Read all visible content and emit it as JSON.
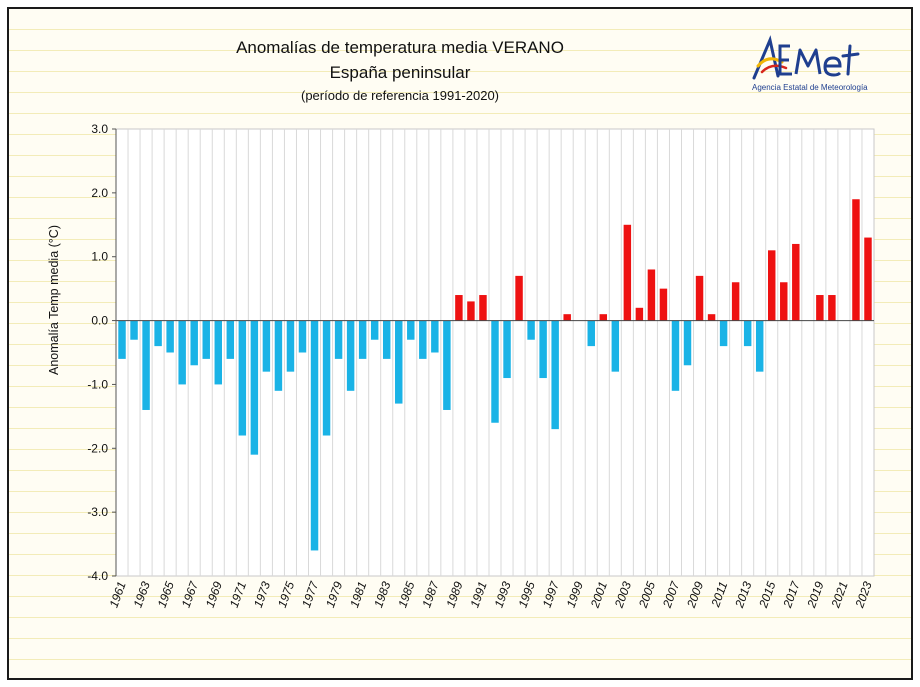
{
  "chart_data": {
    "type": "bar",
    "title": "Anomalías de temperatura media VERANO",
    "subtitle": "España peninsular",
    "note": "(período de referencia 1991-2020)",
    "ylabel": "Anomalía Temp media (°C)",
    "xlabel": "",
    "ylim": [
      -4.0,
      3.0
    ],
    "yticks": [
      "3.0",
      "2.0",
      "1.0",
      "0.0",
      "-1.0",
      "-2.0",
      "-3.0",
      "-4.0"
    ],
    "ytick_values": [
      3,
      2,
      1,
      0,
      -1,
      -2,
      -3,
      -4
    ],
    "grid": "vertical",
    "colors": {
      "positive": "#ee1111",
      "negative": "#1ab3e6"
    },
    "categories": [
      1961,
      1962,
      1963,
      1964,
      1965,
      1966,
      1967,
      1968,
      1969,
      1970,
      1971,
      1972,
      1973,
      1974,
      1975,
      1976,
      1977,
      1978,
      1979,
      1980,
      1981,
      1982,
      1983,
      1984,
      1985,
      1986,
      1987,
      1988,
      1989,
      1990,
      1991,
      1992,
      1993,
      1994,
      1995,
      1996,
      1997,
      1998,
      1999,
      2000,
      2001,
      2002,
      2003,
      2004,
      2005,
      2006,
      2007,
      2008,
      2009,
      2010,
      2011,
      2012,
      2013,
      2014,
      2015,
      2016,
      2017,
      2018,
      2019,
      2020,
      2021,
      2022,
      2023
    ],
    "xtick_labels": [
      "1961",
      "1963",
      "1965",
      "1967",
      "1969",
      "1971",
      "1973",
      "1975",
      "1977",
      "1979",
      "1981",
      "1983",
      "1985",
      "1987",
      "1989",
      "1991",
      "1993",
      "1995",
      "1997",
      "1999",
      "2001",
      "2003",
      "2005",
      "2007",
      "2009",
      "2011",
      "2013",
      "2015",
      "2017",
      "2019",
      "2021",
      "2023"
    ],
    "values": [
      -0.6,
      -0.3,
      -1.4,
      -0.4,
      -0.5,
      -1.0,
      -0.7,
      -0.6,
      -1.0,
      -0.6,
      -1.8,
      -2.1,
      -0.8,
      -1.1,
      -0.8,
      -0.5,
      -3.6,
      -1.8,
      -0.6,
      -1.1,
      -0.6,
      -0.3,
      -0.6,
      -1.3,
      -0.3,
      -0.6,
      -0.5,
      -1.4,
      0.4,
      0.3,
      0.4,
      -1.6,
      -0.9,
      0.7,
      -0.3,
      -0.9,
      -1.7,
      0.1,
      0.0,
      -0.4,
      0.1,
      -0.8,
      1.5,
      0.2,
      0.8,
      0.5,
      -1.1,
      -0.7,
      0.7,
      0.1,
      -0.4,
      0.6,
      -0.4,
      -0.8,
      1.1,
      0.6,
      1.2,
      0.0,
      0.4,
      0.4,
      0.0,
      1.9,
      1.3
    ]
  },
  "logo": {
    "text": "AEMet",
    "caption": "Agencia Estatal de Meteorología",
    "color": "#1f3f8f",
    "accent": "#f2b705"
  }
}
